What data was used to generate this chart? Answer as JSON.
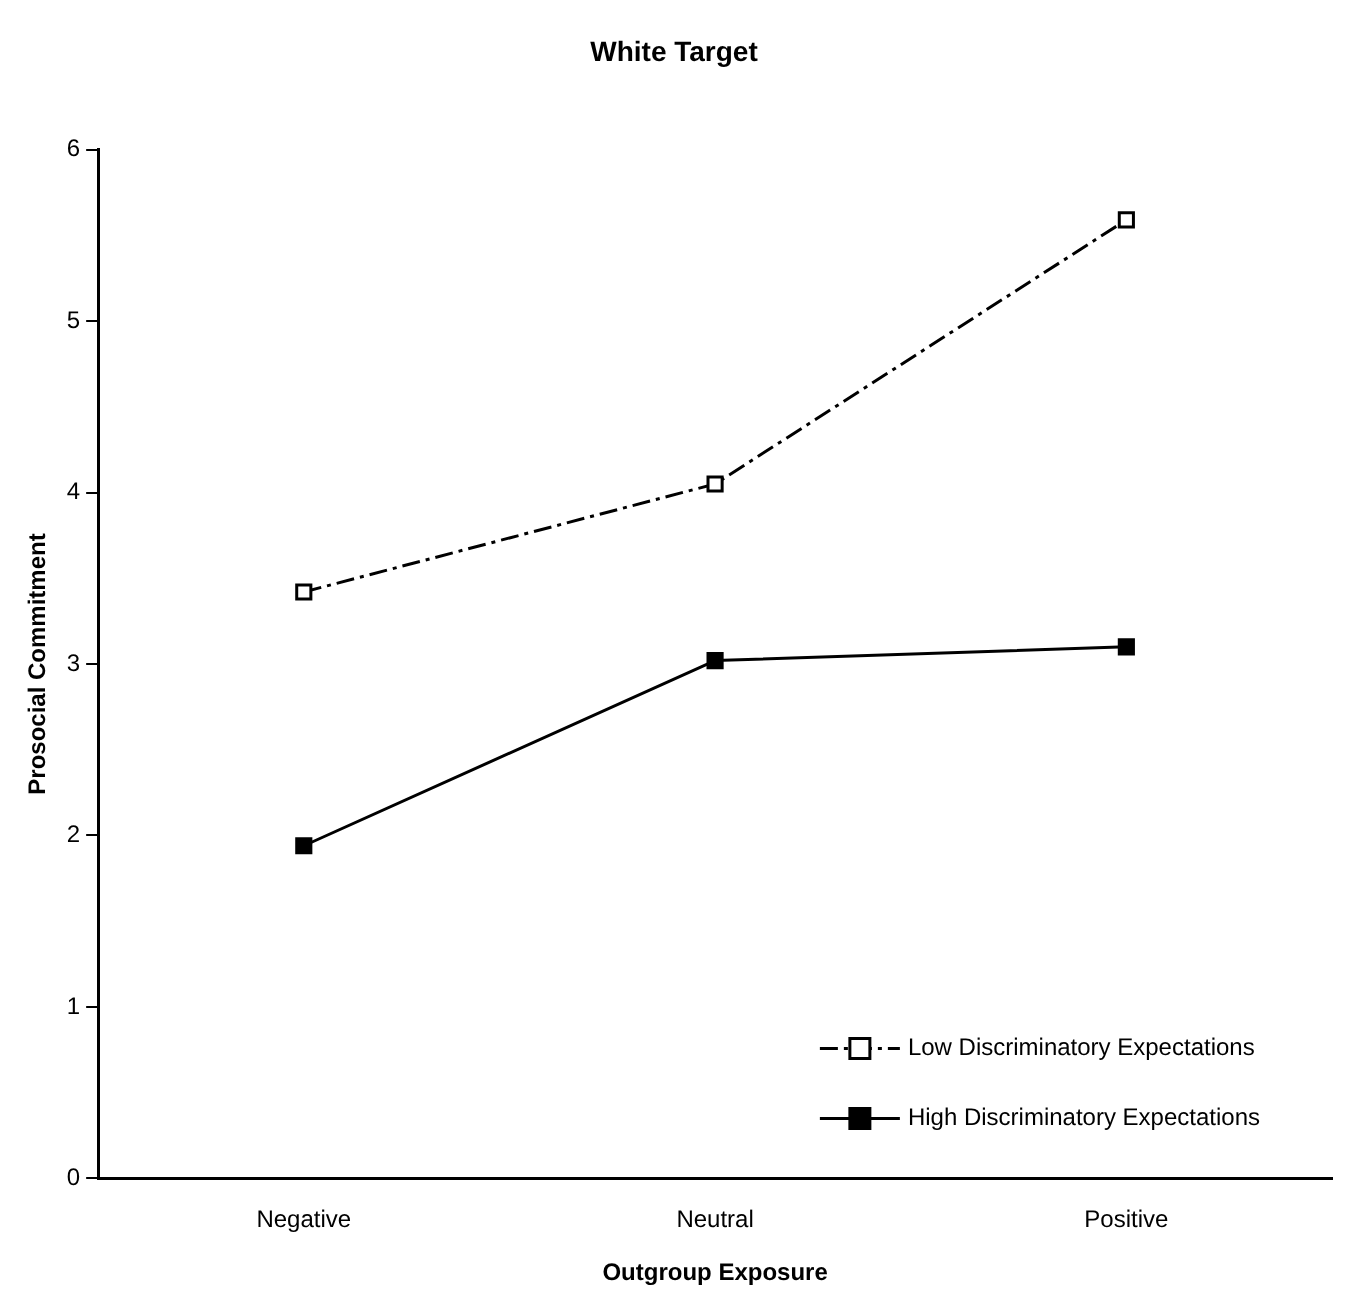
{
  "chart_data": {
    "type": "line",
    "title": "White Target",
    "xlabel": "Outgroup Exposure",
    "ylabel": "Prosocial Commitment",
    "categories": [
      "Negative",
      "Neutral",
      "Positive"
    ],
    "series": [
      {
        "name": "Low Discriminatory Expectations",
        "color": "#000000",
        "values": [
          3.42,
          4.05,
          5.59
        ],
        "line_style": "dashed"
      },
      {
        "name": "High Discriminatory Expectations",
        "color": "#000000",
        "values": [
          1.94,
          3.02,
          3.1
        ],
        "line_style": "solid"
      }
    ],
    "ylim": [
      0,
      6
    ],
    "yticks": [
      0,
      1,
      2,
      3,
      4,
      5,
      6
    ],
    "grid": false,
    "legend": "bottom right",
    "marker": "square"
  }
}
